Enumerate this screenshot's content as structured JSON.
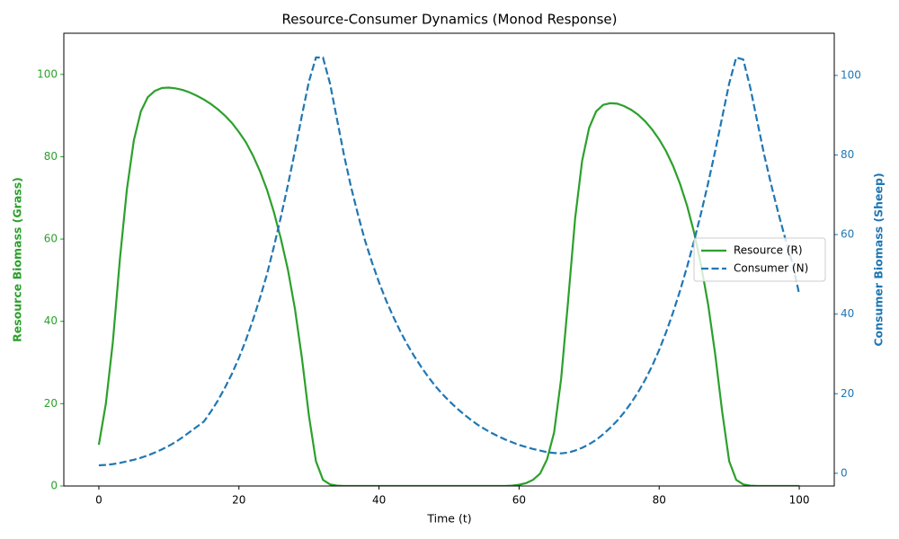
{
  "chart_data": {
    "type": "line",
    "title": "Resource-Consumer Dynamics (Monod Response)",
    "x_label": "Time (t)",
    "y_label": "Resource Biomass (Grass)",
    "y2_label": "Consumer Biomass (Sheep)",
    "x": [
      0,
      1,
      2,
      3,
      4,
      5,
      6,
      7,
      8,
      9,
      10,
      11,
      12,
      13,
      14,
      15,
      16,
      17,
      18,
      19,
      20,
      21,
      22,
      23,
      24,
      25,
      26,
      27,
      28,
      29,
      30,
      31,
      32,
      33,
      34,
      35,
      36,
      37,
      38,
      39,
      40,
      41,
      42,
      43,
      44,
      45,
      46,
      47,
      48,
      49,
      50,
      51,
      52,
      53,
      54,
      55,
      56,
      57,
      58,
      59,
      60,
      61,
      62,
      63,
      64,
      65,
      66,
      67,
      68,
      69,
      70,
      71,
      72,
      73,
      74,
      75,
      76,
      77,
      78,
      79,
      80,
      81,
      82,
      83,
      84,
      85,
      86,
      87,
      88,
      89,
      90,
      91,
      92,
      93,
      94,
      95,
      96,
      97,
      98,
      99,
      100
    ],
    "series": [
      {
        "name": "Resource (R)",
        "color": "#2ca02c",
        "dash": "solid",
        "axis": "y",
        "values": [
          10,
          20,
          35,
          55,
          72,
          84,
          91,
          94.5,
          96,
          96.7,
          96.8,
          96.6,
          96.2,
          95.6,
          94.8,
          93.9,
          92.8,
          91.5,
          90,
          88.2,
          86,
          83.5,
          80.3,
          76.5,
          72,
          66.5,
          60,
          52.5,
          43,
          31,
          17,
          6,
          1.5,
          0.4,
          0.1,
          0,
          0,
          0,
          0,
          0,
          0,
          0,
          0,
          0,
          0,
          0,
          0,
          0,
          0,
          0,
          0,
          0,
          0,
          0,
          0,
          0,
          0,
          0,
          0,
          0.1,
          0.3,
          0.7,
          1.5,
          3,
          6.5,
          13,
          26,
          45,
          65,
          79,
          87,
          91,
          92.6,
          93,
          92.9,
          92.3,
          91.4,
          90.2,
          88.6,
          86.6,
          84.2,
          81.3,
          77.7,
          73.3,
          68,
          61.5,
          53.5,
          44,
          32,
          18,
          6,
          1.5,
          0.4,
          0.1,
          0,
          0,
          0,
          0,
          0,
          0,
          0
        ]
      },
      {
        "name": "Consumer (N)",
        "color": "#1f77b4",
        "dash": "dashed",
        "axis": "y2",
        "values": [
          2,
          2.1,
          2.3,
          2.6,
          3,
          3.4,
          3.9,
          4.5,
          5.2,
          6,
          6.9,
          7.9,
          9.1,
          10.4,
          11.7,
          13,
          15.5,
          18.3,
          21.5,
          25,
          29,
          33.5,
          38.5,
          44,
          50,
          57,
          64.5,
          72.5,
          81,
          90,
          98.5,
          104.5,
          104.5,
          98,
          89,
          80,
          72,
          65,
          58.5,
          53,
          48,
          43.5,
          39.5,
          35.8,
          32.5,
          29.5,
          26.8,
          24.3,
          22,
          20,
          18.2,
          16.5,
          15,
          13.6,
          12.3,
          11.2,
          10.2,
          9.3,
          8.5,
          7.8,
          7.1,
          6.6,
          6.1,
          5.7,
          5.3,
          5.1,
          5,
          5.2,
          5.7,
          6.4,
          7.3,
          8.4,
          9.8,
          11.4,
          13.2,
          15.3,
          17.7,
          20.4,
          23.5,
          27,
          31,
          35.5,
          40.5,
          46,
          52,
          58.5,
          65.5,
          73,
          81,
          89.5,
          98,
          104.5,
          104,
          97,
          88.5,
          80,
          72.5,
          65.5,
          59,
          53,
          45
        ]
      }
    ],
    "xlim": [
      -5,
      105
    ],
    "xticks": [
      0,
      20,
      40,
      60,
      80,
      100
    ],
    "ylim": [
      0,
      110
    ],
    "yticks": [
      0,
      20,
      40,
      60,
      80,
      100
    ],
    "y2lim": [
      -3.2,
      110.6
    ],
    "y2ticks": [
      0,
      20,
      40,
      60,
      80,
      100
    ],
    "legend": "center right"
  }
}
